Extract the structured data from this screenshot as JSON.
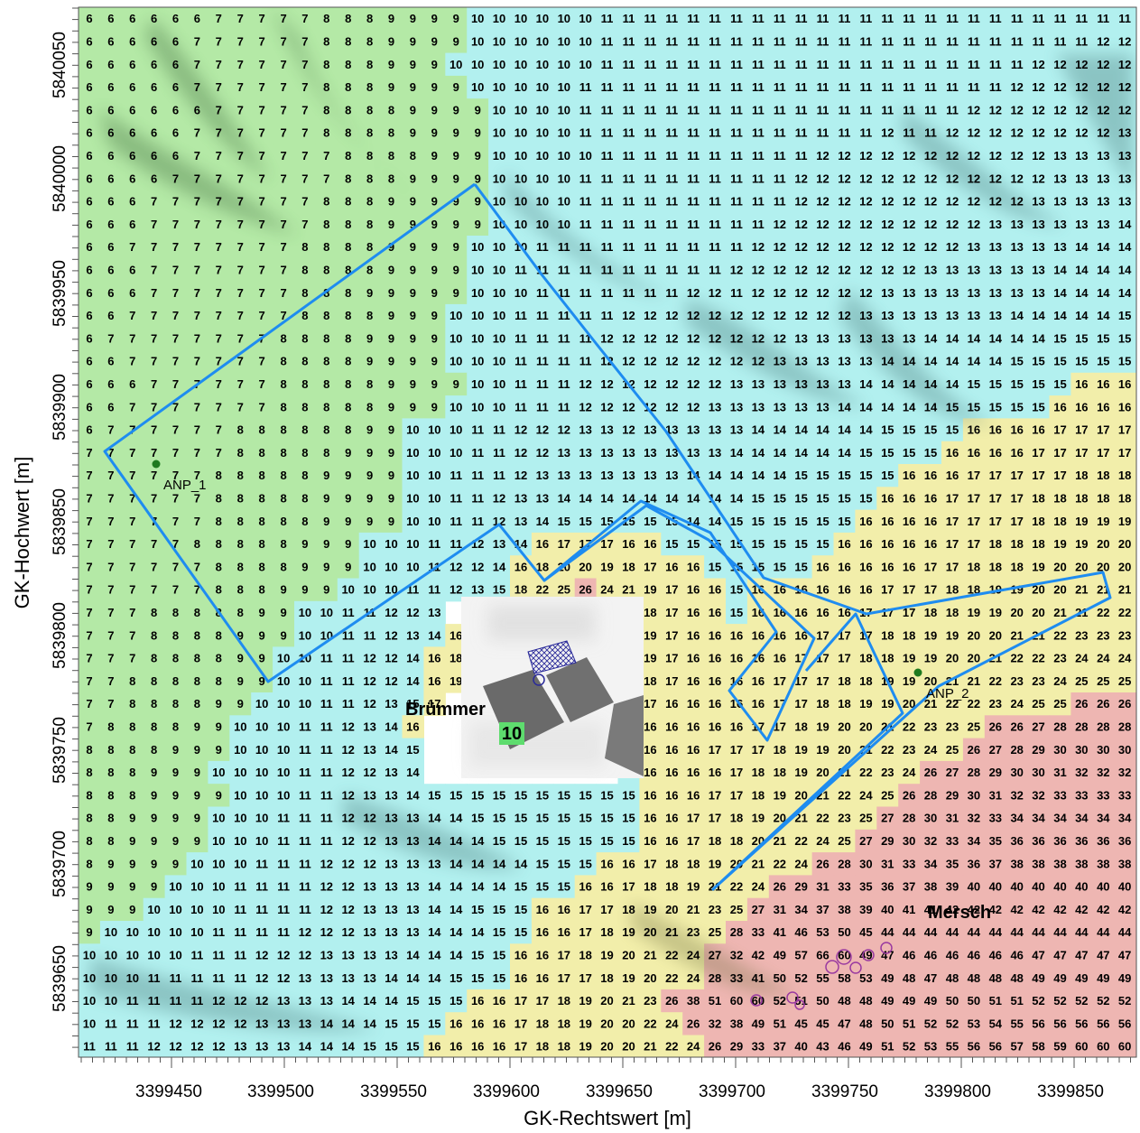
{
  "axes": {
    "x_title": "GK-Rechtswert [m]",
    "y_title": "GK-Hochwert [m]",
    "x_ticks": [
      "3399450",
      "3399500",
      "3399550",
      "3399600",
      "3399650",
      "3399700",
      "3399750",
      "3399800",
      "3399850"
    ],
    "y_ticks": [
      "5840050",
      "5840000",
      "5839950",
      "5839900",
      "5839850",
      "5839800",
      "5839750",
      "5839700",
      "5839650"
    ]
  },
  "labels": {
    "place_brummer": "Brümmer",
    "place_mersch": "Mersch",
    "receptor_1": "ANP_1",
    "receptor_2": "ANP_2",
    "inset_value": "10"
  },
  "colors": {
    "green": "#b4e9a6",
    "cyan": "#b2f0ef",
    "yellow": "#f2eeaa",
    "red": "#eeb6b2",
    "outline": "#1e8cf0",
    "receptor": "#1f7a1f",
    "badge": "#5edc6e"
  },
  "grid": {
    "note_shading": "green 6-9, cyan 10-15, yellow 16-25, red 26+",
    "rows": [
      "6 6 6 6 6 6 7 7 7 7 7 8 8 8 9 9 9 9 10 10 10 10 10 10 11 11 11 11 11 11 11 11 11 11 11 11 11 11 11 11 11 11 11 11 11 11 11 11 11",
      "6 6 6 6 6 7 7 7 7 7 7 8 8 8 9 9 9 9 10 10 10 10 10 10 11 11 11 11 11 11 11 11 11 11 11 11 11 11 11 11 11 11 11 11 11 11 11 12 12",
      "6 6 6 6 6 7 7 7 7 7 7 8 8 8 9 9 9 10 10 10 10 10 10 10 11 11 11 11 11 11 11 11 11 11 11 11 11 11 11 11 11 11 11 11 12 12 12 12 12",
      "6 6 6 6 6 7 7 7 7 7 7 8 8 8 9 9 9 9 10 10 10 10 10 11 11 11 11 11 11 11 11 11 11 11 11 11 11 11 11 11 11 11 11 12 12 12 12 12 12",
      "6 6 6 6 6 6 7 7 7 7 7 8 8 8 8 9 9 9 9 10 10 10 10 11 11 11 11 11 11 11 11 11 11 11 11 11 11 11 11 11 11 12 12 12 12 12 12 12 12",
      "6 6 6 6 6 7 7 7 7 7 7 8 8 8 8 9 9 9 9 10 10 10 10 11 11 11 11 11 11 11 11 11 11 11 11 11 11 12 11 11 12 12 12 12 12 12 12 12 13",
      "6 6 6 6 6 7 7 7 7 7 7 7 8 8 8 8 9 9 9 10 10 10 10 10 11 11 11 11 11 11 11 11 11 11 12 12 12 12 12 12 12 12 12 12 12 13 13 13 13",
      "6 6 6 6 7 7 7 7 7 7 7 7 8 8 8 9 9 9 9 10 10 10 10 11 11 11 11 11 11 11 11 11 11 12 12 12 12 12 12 12 12 12 12 12 12 13 13 13 13",
      "6 6 6 7 7 7 7 7 7 7 7 8 8 8 9 9 9 9 9 10 10 10 10 11 11 11 11 11 11 11 11 11 11 12 12 12 12 12 12 12 12 12 12 12 13 13 13 13 13",
      "6 6 6 7 7 7 7 7 7 7 7 8 8 8 9 9 9 9 9 10 10 10 10 11 11 11 11 11 11 11 11 11 12 12 12 12 12 12 12 12 12 12 13 13 13 13 13 13 14",
      "6 6 7 7 7 7 7 7 7 7 8 8 8 8 9 9 9 9 10 10 10 11 11 11 11 11 11 11 11 11 11 12 12 12 12 12 12 12 12 12 12 13 13 13 13 13 14 14 14",
      "6 6 6 7 7 7 7 7 7 7 8 8 8 8 9 9 9 9 10 10 11 11 11 11 11 11 11 11 11 11 12 12 12 12 12 12 12 12 12 13 13 13 13 13 13 14 14 14 14",
      "6 6 6 7 7 7 7 7 7 7 8 8 8 9 9 9 9 9 10 10 10 11 11 11 11 11 11 11 12 12 11 12 12 12 12 12 12 13 13 13 13 13 13 13 13 14 14 14 14",
      "6 6 7 7 7 7 7 7 7 7 8 8 8 8 9 9 9 10 10 10 11 11 11 11 11 12 12 12 12 12 12 12 12 12 12 12 13 13 13 13 13 13 13 14 14 14 14 14 15",
      "6 7 7 7 7 7 7 7 7 8 8 8 8 9 9 9 9 10 10 10 11 11 11 11 12 12 12 12 12 12 12 12 12 13 13 13 13 13 13 14 14 14 14 14 14 15 15 15 15",
      "6 6 7 7 7 7 7 7 7 8 8 8 8 9 9 9 9 10 10 10 11 11 11 11 12 12 12 12 12 12 12 12 13 13 13 13 13 14 14 14 14 14 14 15 15 15 15 15 15",
      "6 6 6 7 7 7 7 7 7 8 8 8 8 8 9 9 9 9 10 10 11 11 11 12 12 12 12 12 12 12 13 13 13 13 13 13 14 14 14 14 14 15 15 15 15 15 16 16 16",
      "6 6 7 7 7 7 7 7 7 8 8 8 8 8 9 9 9 10 10 10 11 11 11 12 12 12 12 12 12 13 13 13 13 13 13 14 14 14 14 14 15 15 15 15 15 16 16 16 16",
      "6 7 7 7 7 7 7 8 8 8 8 8 8 9 9 10 10 10 11 11 12 12 12 13 13 12 13 13 13 13 13 14 14 14 14 14 14 15 15 15 15 16 16 16 16 17 17 17 17",
      "7 7 7 7 7 7 7 8 8 8 8 8 9 9 9 10 10 10 11 11 12 12 13 13 13 13 13 13 13 13 14 14 14 14 14 14 15 15 15 15 16 16 16 16 17 17 17 17 17",
      "7 7 7 7 7 7 8 8 8 8 8 9 9 9 9 10 10 11 11 11 12 13 13 13 13 13 13 13 14 14 14 14 14 15 15 15 15 15 16 16 16 17 17 17 17 17 18 18 18",
      "7 7 7 7 7 7 8 8 8 8 8 9 9 9 9 10 10 11 11 12 13 13 14 14 14 14 14 14 14 14 14 15 15 15 15 15 15 16 16 16 17 17 17 17 18 18 18 18 18",
      "7 7 7 7 7 7 8 8 8 8 8 9 9 9 9 10 10 11 11 12 13 14 15 15 15 15 15 15 14 14 15 15 15 15 15 15 16 16 16 16 17 17 17 17 18 18 19 19 19",
      "7 7 7 7 7 8 8 8 8 8 9 9 9 10 10 10 11 11 12 13 14 16 17 17 17 16 16 15 15 15 15 15 15 15 15 16 16 16 16 16 17 17 18 18 18 19 19 20 20",
      "7 7 7 7 7 7 8 8 8 8 9 9 9 10 10 10 11 12 12 14 16 18 20 20 19 18 17 16 16 15 15 15 15 15 16 16 16 16 16 17 17 18 18 18 19 20 20 20 20",
      "7 7 7 7 7 7 8 8 8 9 9 9 10 10 10 11 11 12 13 15 18 22 25 26 24 21 19 17 16 16 15 16 16 16 16 16 16 17 17 17 18 18 19 19 20 20 21 21 21",
      "7 7 7 8 8 8 8 8 9 9 10 10 11 11 12 12 13 - - - - - - - - 21 18 17 16 16 15 16 16 16 16 16 17 17 17 18 18 19 19 20 20 21 21 22 22",
      "7 7 7 8 8 8 8 9 9 9 10 10 11 11 12 13 14 16 - - - - - - - 23 19 17 16 16 16 16 16 16 17 17 17 18 18 19 19 20 20 21 21 22 23 23 23",
      "7 7 7 8 8 8 8 9 9 10 10 11 11 12 12 14 16 18 - - - - - - - 22 19 17 16 16 16 16 16 17 17 17 18 18 19 19 20 20 21 22 22 23 24 24 24",
      "7 7 8 8 8 8 8 9 9 10 10 11 11 12 12 14 16 19 - - - - - - - 20 18 17 16 16 16 16 17 17 17 18 18 19 19 20 21 21 22 23 23 24 25 25 25",
      "7 7 8 8 8 8 9 9 10 10 10 11 11 12 13 15 17 - - - - - - - - 18 17 16 16 16 16 16 17 17 18 18 19 19 20 21 22 22 23 24 25 25 26 26 26",
      "7 8 8 8 8 9 9 10 10 10 11 11 12 13 14 16 - - - - - - - - - 17 16 16 16 16 16 17 17 18 19 20 20 21 22 23 23 25 26 26 27 28 28 28 28",
      "8 8 8 8 9 9 9 10 10 10 11 11 12 13 14 15 - - - - - - - - - 16 16 16 16 17 17 17 18 19 19 20 21 22 23 24 25 26 27 28 29 30 30 30 30",
      "8 8 8 9 9 9 10 10 10 10 11 11 12 12 13 14 - - - - - - - - - 15 16 16 16 16 17 18 18 19 20 21 22 23 24 26 27 28 29 30 30 31 32 32 32",
      "8 8 8 9 9 9 9 10 10 10 11 11 12 13 13 14 15 15 15 15 15 15 15 15 15 15 16 16 16 17 17 18 19 20 21 22 24 25 26 28 29 30 31 32 32 33 33 33 33",
      "8 8 9 9 9 9 10 10 10 11 11 11 12 12 13 13 14 14 15 15 15 15 15 15 15 15 16 16 17 17 18 19 20 21 22 23 25 27 28 30 31 32 33 34 34 34 34 34 34",
      "8 8 9 9 9 9 10 10 10 11 11 11 12 12 13 13 14 14 14 15 15 15 15 15 15 15 16 16 17 18 18 20 21 22 24 25 27 29 30 32 33 34 35 36 36 36 36 36 36",
      "8 9 9 9 9 10 10 10 11 11 11 12 12 12 13 13 13 14 14 14 14 15 15 15 16 16 17 18 18 19 20 21 22 24 26 28 30 31 33 34 35 36 37 38 38 38 38 38 38",
      "9 9 9 9 10 10 10 11 11 11 11 12 12 13 13 13 14 14 14 14 15 15 15 16 16 17 18 18 19 21 22 24 26 29 31 33 35 36 37 38 39 40 40 40 40 40 40 40 40",
      "9 9 9 10 10 10 10 11 11 11 11 12 12 13 13 13 14 14 15 15 15 16 16 17 17 18 19 20 21 23 25 27 31 34 37 38 39 40 41 41 42 42 42 42 42 42 42 42 42",
      "9 10 10 10 10 10 11 11 11 11 12 12 12 13 13 13 14 14 14 15 15 16 16 17 18 19 20 21 23 25 28 33 41 46 53 50 45 44 44 44 44 44 44 44 44 44 44 44 44",
      "10 10 10 10 10 11 11 11 12 12 12 13 13 13 13 14 14 14 15 15 16 16 17 18 19 20 21 22 24 27 32 42 49 57 66 60 49 47 46 46 46 46 46 46 47 47 47 47 47",
      "10 10 10 11 11 11 11 11 12 12 13 13 13 13 14 14 14 15 15 15 16 16 17 17 18 19 20 22 24 28 33 41 50 52 55 58 53 49 48 47 48 48 48 48 49 49 49 49 49",
      "10 10 11 11 11 11 12 12 12 13 13 13 14 14 14 15 15 15 16 16 17 17 18 19 20 21 23 26 38 51 60 60 52 51 50 48 48 49 49 49 50 50 51 51 52 52 52 52 52",
      "10 11 11 11 12 12 12 12 13 13 13 14 14 14 15 15 15 16 16 16 17 18 18 19 20 20 22 24 26 32 38 49 51 45 45 47 48 50 51 52 52 53 54 55 56 56 56 56 56",
      "11 11 11 12 12 12 12 13 13 13 14 14 14 15 15 15 16 16 16 16 17 18 18 19 20 20 21 22 24 26 29 33 37 40 43 46 49 51 52 53 55 56 56 57 58 59 60 60 60"
    ]
  }
}
